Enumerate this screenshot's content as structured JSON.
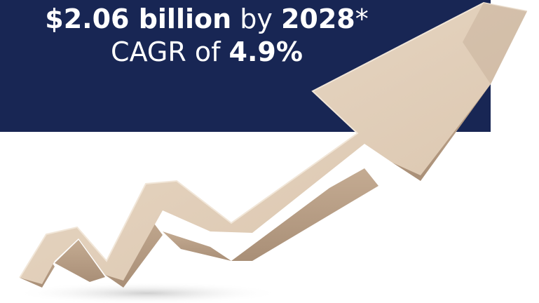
{
  "headline": {
    "line1": {
      "amount": "$2.06 billion",
      "by": " by ",
      "year": "2028",
      "footnote_mark": "*"
    },
    "line2": {
      "prefix": "CAGR of ",
      "rate": "4.9%"
    }
  },
  "colors": {
    "banner": "#182654",
    "arrow_face": "#e0cdb8",
    "arrow_side": "#b79d84",
    "arrow_shadow": "#d8d8d8",
    "text": "#ffffff"
  },
  "icons": {
    "arrow": "rising-zigzag-arrow-icon"
  }
}
